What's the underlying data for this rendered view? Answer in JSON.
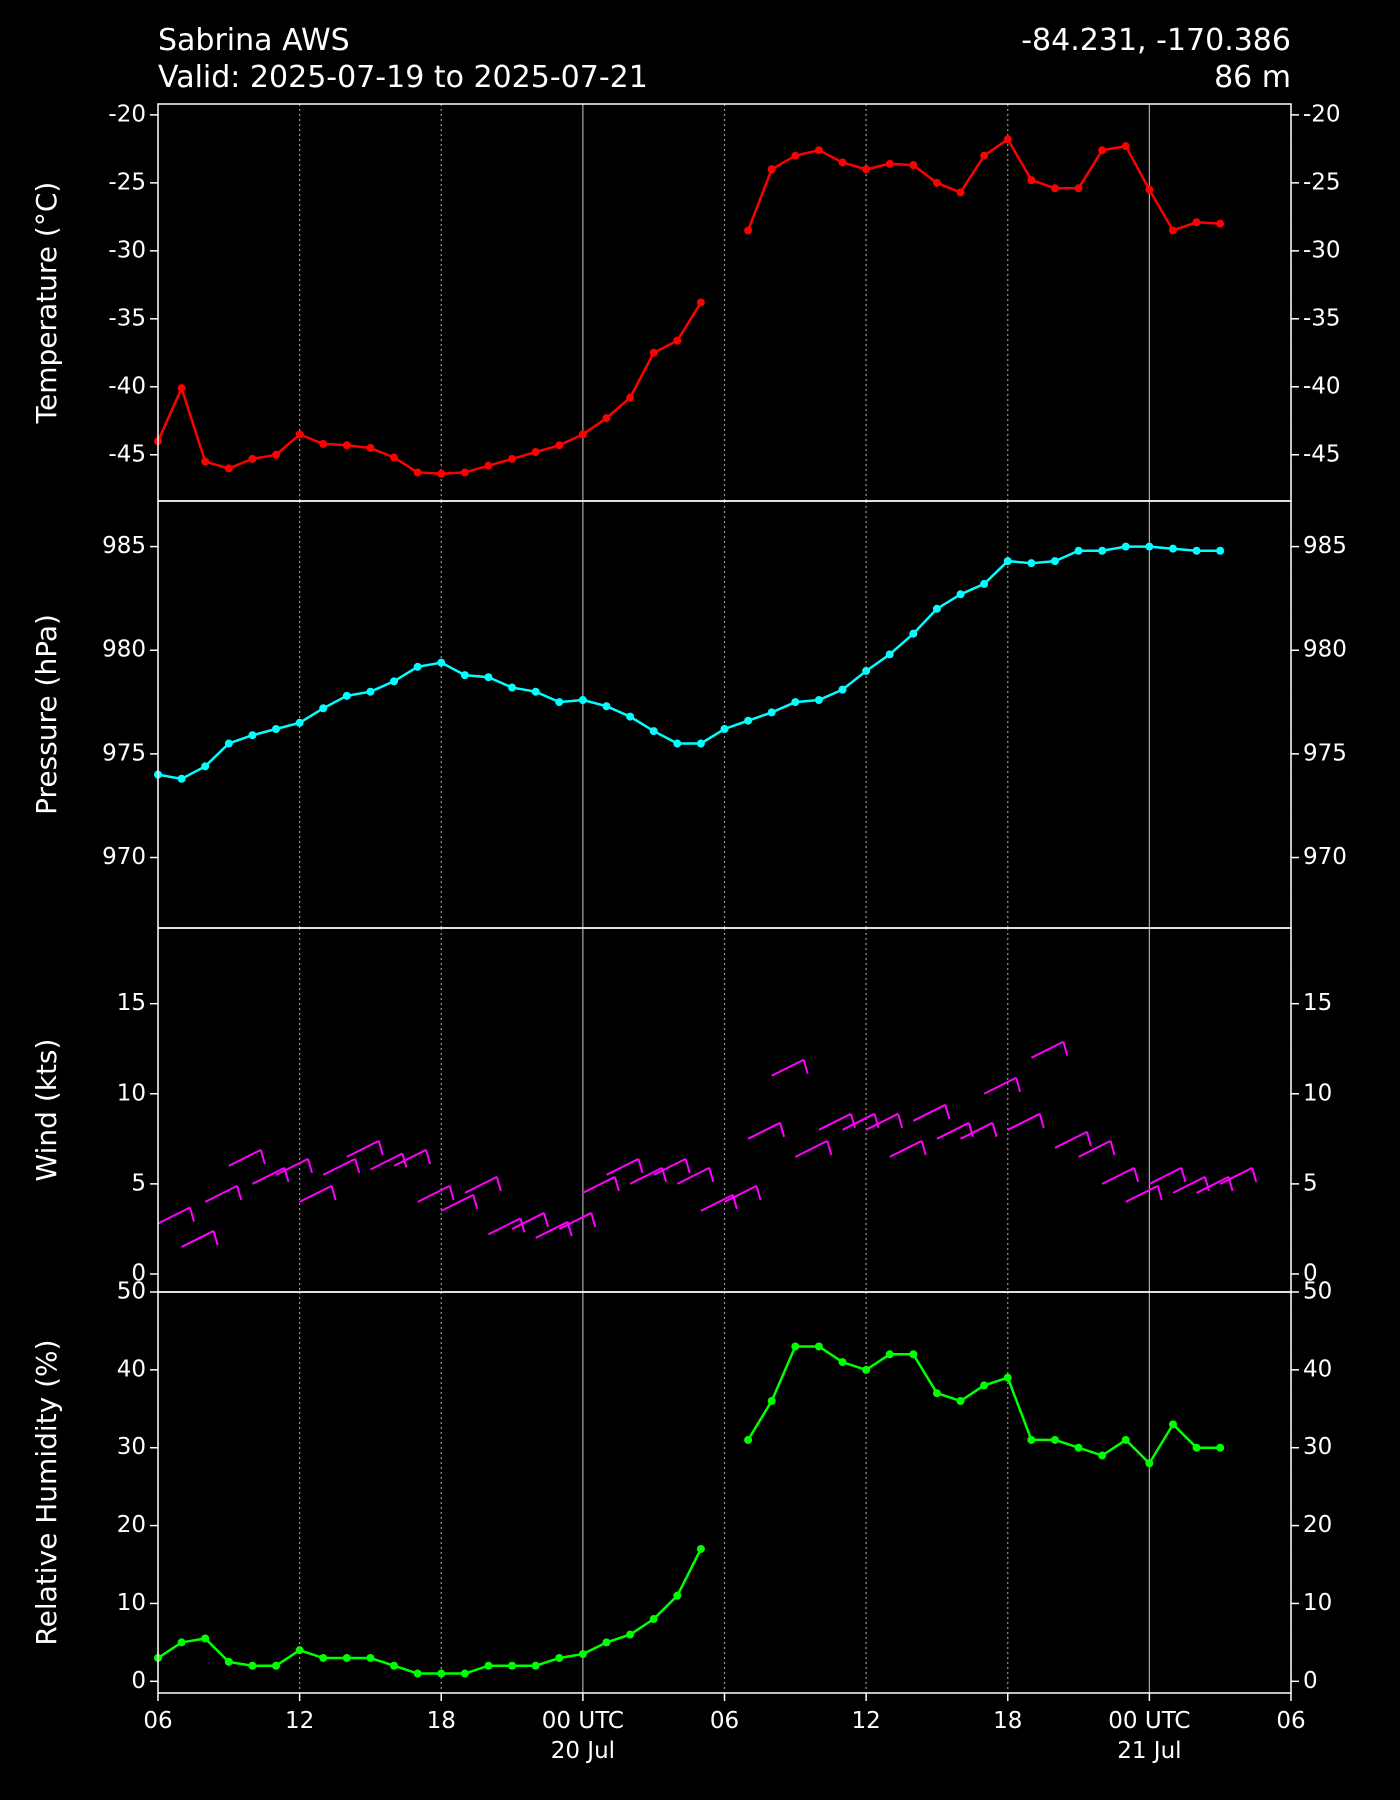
{
  "header": {
    "title": "Sabrina AWS",
    "subtitle": "Valid: 2025-07-19 to 2025-07-21",
    "location": "-84.231, -170.386",
    "elevation": "86 m"
  },
  "chart_data": [
    {
      "type": "line",
      "ylabel": "Temperature (°C)",
      "color": "#ff0000",
      "x": [
        "2025-07-19 06:00",
        "2025-07-19 07:00",
        "2025-07-19 08:00",
        "2025-07-19 09:00",
        "2025-07-19 10:00",
        "2025-07-19 11:00",
        "2025-07-19 12:00",
        "2025-07-19 13:00",
        "2025-07-19 14:00",
        "2025-07-19 15:00",
        "2025-07-19 16:00",
        "2025-07-19 17:00",
        "2025-07-19 18:00",
        "2025-07-19 19:00",
        "2025-07-19 20:00",
        "2025-07-19 21:00",
        "2025-07-19 22:00",
        "2025-07-19 23:00",
        "2025-07-20 00:00",
        "2025-07-20 01:00",
        "2025-07-20 02:00",
        "2025-07-20 03:00",
        "2025-07-20 04:00",
        "2025-07-20 05:00",
        "2025-07-20 06:00",
        "2025-07-20 07:00",
        "2025-07-20 08:00",
        "2025-07-20 09:00",
        "2025-07-20 10:00",
        "2025-07-20 11:00",
        "2025-07-20 12:00",
        "2025-07-20 13:00",
        "2025-07-20 14:00",
        "2025-07-20 15:00",
        "2025-07-20 16:00",
        "2025-07-20 17:00",
        "2025-07-20 18:00",
        "2025-07-20 19:00",
        "2025-07-20 20:00",
        "2025-07-20 21:00",
        "2025-07-20 22:00",
        "2025-07-20 23:00",
        "2025-07-21 00:00",
        "2025-07-21 01:00",
        "2025-07-21 02:00",
        "2025-07-21 03:00"
      ],
      "values": [
        -44,
        -40.1,
        -45.5,
        -46,
        -45.3,
        -45,
        -43.5,
        -44.2,
        -44.3,
        -44.5,
        -45.2,
        -46.3,
        -46.4,
        -46.3,
        -45.8,
        -45.3,
        -44.8,
        -44.3,
        -43.5,
        -42.3,
        -40.8,
        -37.5,
        -36.6,
        -33.8,
        null,
        -28.5,
        -24,
        -23,
        -22.6,
        -23.5,
        -24,
        -23.6,
        -23.7,
        -25,
        -25.7,
        -23,
        -21.8,
        -24.8,
        -25.4,
        -25.4,
        -22.6,
        -22.3,
        -25.5,
        -28.5,
        -27.9,
        -28
      ],
      "ylim": [
        -48.4,
        -19.2
      ],
      "yticks": [
        -45,
        -40,
        -35,
        -30,
        -25,
        -20
      ]
    },
    {
      "type": "line",
      "ylabel": "Pressure (hPa)",
      "color": "#00ffff",
      "x": [
        "2025-07-19 06:00",
        "2025-07-19 07:00",
        "2025-07-19 08:00",
        "2025-07-19 09:00",
        "2025-07-19 10:00",
        "2025-07-19 11:00",
        "2025-07-19 12:00",
        "2025-07-19 13:00",
        "2025-07-19 14:00",
        "2025-07-19 15:00",
        "2025-07-19 16:00",
        "2025-07-19 17:00",
        "2025-07-19 18:00",
        "2025-07-19 19:00",
        "2025-07-19 20:00",
        "2025-07-19 21:00",
        "2025-07-19 22:00",
        "2025-07-19 23:00",
        "2025-07-20 00:00",
        "2025-07-20 01:00",
        "2025-07-20 02:00",
        "2025-07-20 03:00",
        "2025-07-20 04:00",
        "2025-07-20 05:00",
        "2025-07-20 06:00",
        "2025-07-20 07:00",
        "2025-07-20 08:00",
        "2025-07-20 09:00",
        "2025-07-20 10:00",
        "2025-07-20 11:00",
        "2025-07-20 12:00",
        "2025-07-20 13:00",
        "2025-07-20 14:00",
        "2025-07-20 15:00",
        "2025-07-20 16:00",
        "2025-07-20 17:00",
        "2025-07-20 18:00",
        "2025-07-20 19:00",
        "2025-07-20 20:00",
        "2025-07-20 21:00",
        "2025-07-20 22:00",
        "2025-07-20 23:00",
        "2025-07-21 00:00",
        "2025-07-21 01:00",
        "2025-07-21 02:00",
        "2025-07-21 03:00"
      ],
      "values": [
        974.0,
        973.8,
        974.4,
        975.5,
        975.9,
        976.2,
        976.5,
        977.2,
        977.8,
        978.0,
        978.5,
        979.2,
        979.4,
        978.8,
        978.7,
        978.2,
        978.0,
        977.5,
        977.6,
        977.3,
        976.8,
        976.1,
        975.5,
        975.5,
        976.2,
        976.6,
        977.0,
        977.5,
        977.6,
        978.1,
        979.0,
        979.8,
        980.8,
        982.0,
        982.7,
        983.2,
        984.3,
        984.2,
        984.3,
        984.8,
        984.8,
        985.0,
        985.0,
        984.9,
        984.8,
        984.8
      ],
      "ylim": [
        966.6,
        987.2
      ],
      "yticks": [
        970,
        975,
        980,
        985
      ]
    },
    {
      "type": "barb",
      "ylabel": "Wind (kts)",
      "color": "#ff00ff",
      "x": [
        "2025-07-19 06:00",
        "2025-07-19 07:00",
        "2025-07-19 08:00",
        "2025-07-19 09:00",
        "2025-07-19 10:00",
        "2025-07-19 11:00",
        "2025-07-19 12:00",
        "2025-07-19 13:00",
        "2025-07-19 14:00",
        "2025-07-19 15:00",
        "2025-07-19 16:00",
        "2025-07-19 17:00",
        "2025-07-19 18:00",
        "2025-07-19 19:00",
        "2025-07-19 20:00",
        "2025-07-19 21:00",
        "2025-07-19 22:00",
        "2025-07-19 23:00",
        "2025-07-20 00:00",
        "2025-07-20 01:00",
        "2025-07-20 02:00",
        "2025-07-20 03:00",
        "2025-07-20 04:00",
        "2025-07-20 05:00",
        "2025-07-20 06:00",
        "2025-07-20 07:00",
        "2025-07-20 08:00",
        "2025-07-20 09:00",
        "2025-07-20 10:00",
        "2025-07-20 11:00",
        "2025-07-20 12:00",
        "2025-07-20 13:00",
        "2025-07-20 14:00",
        "2025-07-20 15:00",
        "2025-07-20 16:00",
        "2025-07-20 17:00",
        "2025-07-20 18:00",
        "2025-07-20 19:00",
        "2025-07-20 20:00",
        "2025-07-20 21:00",
        "2025-07-20 22:00",
        "2025-07-20 23:00",
        "2025-07-21 00:00",
        "2025-07-21 01:00",
        "2025-07-21 02:00",
        "2025-07-21 03:00"
      ],
      "values": [
        2.8,
        1.5,
        4,
        6,
        5,
        5.5,
        4,
        5.5,
        6.5,
        5.8,
        6,
        4,
        3.5,
        4.5,
        2.2,
        2.5,
        2,
        2.5,
        4.5,
        5.5,
        5,
        5.5,
        5,
        3.5,
        4,
        7.5,
        11,
        6.5,
        8,
        8,
        8,
        6.5,
        8.5,
        7.5,
        7.5,
        10,
        8,
        12,
        7,
        6.5,
        5,
        4,
        5,
        4.5,
        4.5,
        5
      ],
      "ylim": [
        -1.0,
        19.2
      ],
      "yticks": [
        0,
        5,
        10,
        15
      ]
    },
    {
      "type": "line",
      "ylabel": "Relative Humidity (%)",
      "color": "#00ff00",
      "x": [
        "2025-07-19 06:00",
        "2025-07-19 07:00",
        "2025-07-19 08:00",
        "2025-07-19 09:00",
        "2025-07-19 10:00",
        "2025-07-19 11:00",
        "2025-07-19 12:00",
        "2025-07-19 13:00",
        "2025-07-19 14:00",
        "2025-07-19 15:00",
        "2025-07-19 16:00",
        "2025-07-19 17:00",
        "2025-07-19 18:00",
        "2025-07-19 19:00",
        "2025-07-19 20:00",
        "2025-07-19 21:00",
        "2025-07-19 22:00",
        "2025-07-19 23:00",
        "2025-07-20 00:00",
        "2025-07-20 01:00",
        "2025-07-20 02:00",
        "2025-07-20 03:00",
        "2025-07-20 04:00",
        "2025-07-20 05:00",
        "2025-07-20 06:00",
        "2025-07-20 07:00",
        "2025-07-20 08:00",
        "2025-07-20 09:00",
        "2025-07-20 10:00",
        "2025-07-20 11:00",
        "2025-07-20 12:00",
        "2025-07-20 13:00",
        "2025-07-20 14:00",
        "2025-07-20 15:00",
        "2025-07-20 16:00",
        "2025-07-20 17:00",
        "2025-07-20 18:00",
        "2025-07-20 19:00",
        "2025-07-20 20:00",
        "2025-07-20 21:00",
        "2025-07-20 22:00",
        "2025-07-20 23:00",
        "2025-07-21 00:00",
        "2025-07-21 01:00",
        "2025-07-21 02:00",
        "2025-07-21 03:00"
      ],
      "values": [
        3,
        5,
        5.5,
        2.5,
        2,
        2,
        4,
        3,
        3,
        3,
        2,
        1,
        1,
        1,
        2,
        2,
        2,
        3,
        3.5,
        5,
        6,
        8,
        11,
        17,
        null,
        31,
        36,
        43,
        43,
        41,
        40,
        42,
        42,
        37,
        36,
        38,
        39,
        31,
        31,
        30,
        29,
        31,
        28,
        33,
        30,
        30
      ],
      "ylim": [
        -1.5,
        50
      ],
      "yticks": [
        0,
        10,
        20,
        30,
        40,
        50
      ],
      "xlim": [
        "2025-07-19 06:00",
        "2025-07-21 06:00"
      ],
      "xticks": [
        {
          "value": "2025-07-19 06:00",
          "label": "06"
        },
        {
          "value": "2025-07-19 12:00",
          "label": "12"
        },
        {
          "value": "2025-07-19 18:00",
          "label": "18"
        },
        {
          "value": "2025-07-20 00:00",
          "label": "00 UTC\n20 Jul"
        },
        {
          "value": "2025-07-20 06:00",
          "label": "06"
        },
        {
          "value": "2025-07-20 12:00",
          "label": "12"
        },
        {
          "value": "2025-07-20 18:00",
          "label": "18"
        },
        {
          "value": "2025-07-21 00:00",
          "label": "00 UTC\n21 Jul"
        },
        {
          "value": "2025-07-21 06:00",
          "label": "06"
        }
      ],
      "grid": true
    }
  ]
}
